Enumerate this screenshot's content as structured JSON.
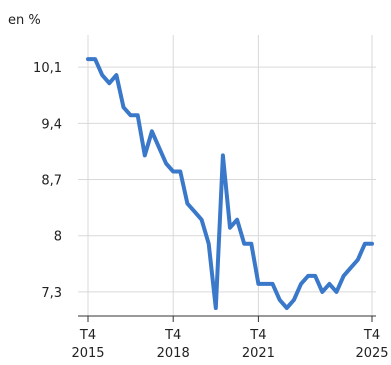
{
  "chart_data": {
    "type": "line",
    "unit_label": "en %",
    "y_ticks": [
      {
        "value": 7.3,
        "label": "7,3"
      },
      {
        "value": 8.0,
        "label": "8"
      },
      {
        "value": 8.7,
        "label": "8,7"
      },
      {
        "value": 9.4,
        "label": "9,4"
      },
      {
        "value": 10.1,
        "label": "10,1"
      }
    ],
    "ylim": [
      7.0,
      10.5
    ],
    "x_ticks": [
      {
        "x": 2015.75,
        "quarter": "T4",
        "year": "2015"
      },
      {
        "x": 2018.75,
        "quarter": "T4",
        "year": "2018"
      },
      {
        "x": 2021.75,
        "quarter": "T4",
        "year": "2021"
      },
      {
        "x": 2025.75,
        "quarter": "T4",
        "year": "2025"
      }
    ],
    "xlim": [
      2015.75,
      2025.75
    ],
    "grid": true,
    "series": [
      {
        "color": "#3a78c9",
        "x": [
          2015.75,
          2016.0,
          2016.25,
          2016.5,
          2016.75,
          2017.0,
          2017.25,
          2017.5,
          2017.75,
          2018.0,
          2018.25,
          2018.5,
          2018.75,
          2019.0,
          2019.25,
          2019.5,
          2019.75,
          2020.0,
          2020.25,
          2020.5,
          2020.75,
          2021.0,
          2021.25,
          2021.5,
          2021.75,
          2022.0,
          2022.25,
          2022.5,
          2022.75,
          2023.0,
          2023.25,
          2023.5,
          2023.75,
          2024.0,
          2024.25,
          2024.5,
          2024.75,
          2025.0,
          2025.25,
          2025.5,
          2025.75
        ],
        "values": [
          10.2,
          10.2,
          10.0,
          9.9,
          10.0,
          9.6,
          9.5,
          9.5,
          9.0,
          9.3,
          9.1,
          8.9,
          8.8,
          8.8,
          8.4,
          8.3,
          8.2,
          7.9,
          7.1,
          9.0,
          8.1,
          8.2,
          7.9,
          7.9,
          7.4,
          7.4,
          7.4,
          7.2,
          7.1,
          7.2,
          7.4,
          7.5,
          7.5,
          7.3,
          7.4,
          7.3,
          7.5,
          7.6,
          7.7,
          7.9,
          7.9
        ]
      }
    ]
  }
}
